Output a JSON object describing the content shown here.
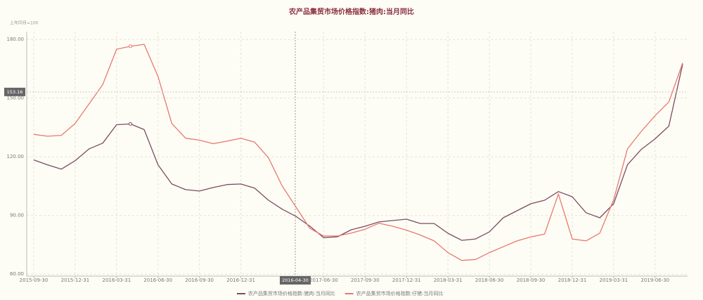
{
  "chart_data": {
    "type": "line",
    "title": "农产品集贸市场价格指数:猪肉:当月同比",
    "subtitle": "上年同月=100",
    "categories": [
      "2015-09-30",
      null,
      null,
      "2015-12-31",
      null,
      null,
      "2016-03-31",
      null,
      null,
      "2016-06-30",
      null,
      null,
      "2016-09-30",
      null,
      null,
      "2016-12-31",
      null,
      null,
      null,
      null,
      null,
      "2017-06-30",
      null,
      null,
      "2017-09-30",
      null,
      null,
      "2017-12-31",
      null,
      null,
      "2018-03-31",
      null,
      null,
      "2018-06-30",
      null,
      null,
      "2018-09-30",
      null,
      null,
      "2018-12-31",
      null,
      null,
      "2019-03-31",
      null,
      null,
      "2019-06-30",
      null,
      null
    ],
    "series": [
      {
        "name": "农产品集贸市场价格指数:猪肉:当月同比",
        "color": "#7d4b62",
        "values": [
          118.4,
          115.9,
          113.7,
          118,
          124,
          127,
          136.4,
          136.8,
          133.9,
          115.9,
          106.1,
          103.2,
          102.5,
          104.3,
          105.8,
          106.1,
          104,
          97.8,
          93.2,
          89.5,
          84.5,
          78.7,
          79.1,
          82.7,
          84.5,
          86.7,
          87.4,
          88.1,
          85.9,
          85.9,
          80.9,
          77.3,
          78,
          81.6,
          88.8,
          92.4,
          96,
          97.8,
          102.2,
          99.6,
          91.4,
          88.8,
          96,
          115.9,
          123.8,
          129.2,
          135.7,
          167.4
        ]
      },
      {
        "name": "农产品集贸市场价格指数:仔猪:当月同比",
        "color": "#e8796b",
        "values": [
          131.5,
          130.5,
          131,
          137,
          147,
          157,
          175,
          176.5,
          177.5,
          161,
          137,
          129.5,
          128.5,
          126.7,
          128,
          129.5,
          127.5,
          119.5,
          105,
          94.2,
          83.4,
          79.5,
          79.5,
          81,
          83,
          86,
          84.5,
          82.5,
          80,
          77,
          71,
          67,
          67.5,
          71,
          74,
          77,
          79,
          80.5,
          101,
          78,
          77,
          81,
          98,
          124,
          133,
          141,
          148,
          168
        ]
      }
    ],
    "ylim": [
      59,
      184
    ],
    "yticks": [
      {
        "value": 60,
        "label": "60.00"
      },
      {
        "value": 90,
        "label": "90.00"
      },
      {
        "value": 120,
        "label": "120.00"
      },
      {
        "value": 150,
        "label": "150.00"
      },
      {
        "value": 180,
        "label": "180.00"
      }
    ],
    "grid": true,
    "legend": "bottom",
    "axis_pointer": {
      "x_label": "2016-04-30",
      "y_value": 153.16
    }
  }
}
